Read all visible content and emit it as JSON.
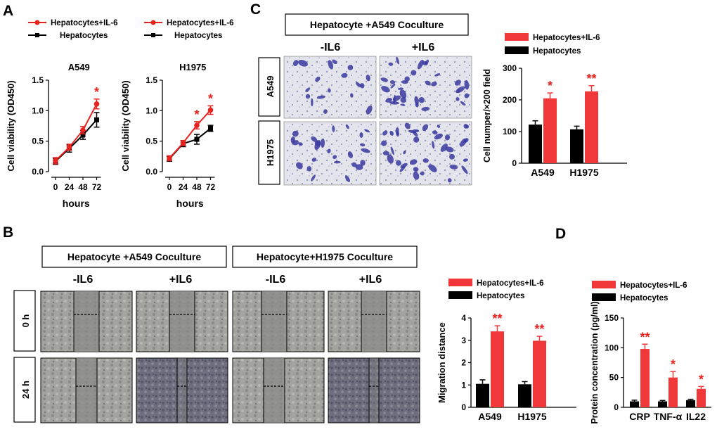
{
  "panel_labels": {
    "a": "A",
    "b": "B",
    "c": "C",
    "d": "D"
  },
  "colors": {
    "il6": "#e8231f",
    "hep": "#000000",
    "bar_il6": "#f0383a",
    "star": "#e8231f",
    "stain_bg": "#e6e6ee",
    "stain_cell": "#3a3aa0",
    "scratch_light": "#8a8a88",
    "scratch_dark": "#4a4a5c"
  },
  "legend": {
    "il6": "Hepatocytes+IL-6",
    "hep": "Hepatocytes"
  },
  "panel_a": {
    "ylabel": "Cell viability (OD450)",
    "xlabel": "hours",
    "yticks": [
      "0.0",
      "0.5",
      "1.0",
      "1.5"
    ],
    "xticks": [
      "0",
      "24",
      "48",
      "72"
    ],
    "star": "*"
  },
  "panel_b": {
    "headers": [
      "Hepatocyte +A549 Coculture",
      "Hepatocyte+H1975 Coculture"
    ],
    "conditions": [
      "-IL6",
      "+IL6",
      "-IL6",
      "+IL6"
    ],
    "rows": [
      "0 h",
      "24 h"
    ]
  },
  "panel_c": {
    "header": "Hepatocyte +A549 Coculture",
    "conditions": [
      "-IL6",
      "+IL6"
    ],
    "rows": [
      "A549",
      "H1975"
    ]
  },
  "chart_data": [
    {
      "id": "a_a549",
      "type": "line",
      "title": "A549",
      "xlabel": "hours",
      "ylabel": "Cell viability (OD450)",
      "x": [
        0,
        24,
        48,
        72
      ],
      "ylim": [
        0,
        1.5
      ],
      "series": [
        {
          "name": "Hepatocytes+IL-6",
          "values": [
            0.18,
            0.4,
            0.68,
            1.11
          ],
          "errors": [
            0.05,
            0.05,
            0.06,
            0.08
          ]
        },
        {
          "name": "Hepatocytes",
          "values": [
            0.17,
            0.38,
            0.6,
            0.85
          ],
          "errors": [
            0.05,
            0.06,
            0.07,
            0.12
          ]
        }
      ],
      "annotations": [
        {
          "x": 72,
          "text": "*"
        }
      ]
    },
    {
      "id": "a_h1975",
      "type": "line",
      "title": "H1975",
      "xlabel": "hours",
      "ylabel": "Cell viability (OD450)",
      "x": [
        0,
        24,
        48,
        72
      ],
      "ylim": [
        0,
        1.5
      ],
      "series": [
        {
          "name": "Hepatocytes+IL-6",
          "values": [
            0.22,
            0.47,
            0.76,
            1.01
          ],
          "errors": [
            0.04,
            0.04,
            0.06,
            0.07
          ]
        },
        {
          "name": "Hepatocytes",
          "values": [
            0.21,
            0.46,
            0.53,
            0.71
          ],
          "errors": [
            0.04,
            0.05,
            0.08,
            0.05
          ]
        }
      ],
      "annotations": [
        {
          "x": 48,
          "text": "*"
        },
        {
          "x": 72,
          "text": "*"
        }
      ]
    },
    {
      "id": "c_invasion",
      "type": "bar",
      "ylabel": "Cell numper/×200 field",
      "categories": [
        "A549",
        "H1975"
      ],
      "ylim": [
        0,
        300
      ],
      "yticks": [
        0,
        100,
        200,
        300
      ],
      "series": [
        {
          "name": "Hepatocytes",
          "values": [
            122,
            107
          ],
          "errors": [
            12,
            10
          ]
        },
        {
          "name": "Hepatocytes+IL-6",
          "values": [
            205,
            227
          ],
          "errors": [
            17,
            18
          ]
        }
      ],
      "annotations": [
        "*",
        "**"
      ]
    },
    {
      "id": "b_migration",
      "type": "bar",
      "ylabel": "Migration distance",
      "categories": [
        "A549",
        "H1975"
      ],
      "ylim": [
        0,
        4
      ],
      "yticks": [
        0,
        1,
        2,
        3,
        4
      ],
      "series": [
        {
          "name": "Hepatocytes",
          "values": [
            1.05,
            1.03
          ],
          "errors": [
            0.18,
            0.12
          ]
        },
        {
          "name": "Hepatocytes+IL-6",
          "values": [
            3.4,
            2.98
          ],
          "errors": [
            0.25,
            0.2
          ]
        }
      ],
      "annotations": [
        "**",
        "**"
      ]
    },
    {
      "id": "d_protein",
      "type": "bar",
      "ylabel": "Protein concentration (pg/ml)",
      "categories": [
        "CRP",
        "TNF-α",
        "IL22"
      ],
      "ylim": [
        0,
        150
      ],
      "yticks": [
        0,
        50,
        100,
        150
      ],
      "series": [
        {
          "name": "Hepatocytes",
          "values": [
            10,
            10,
            12
          ],
          "errors": [
            2,
            1.5,
            1.5
          ]
        },
        {
          "name": "Hepatocytes+IL-6",
          "values": [
            98,
            50,
            31
          ],
          "errors": [
            8,
            10,
            4
          ]
        }
      ],
      "annotations": [
        "**",
        "*",
        "*"
      ]
    }
  ]
}
